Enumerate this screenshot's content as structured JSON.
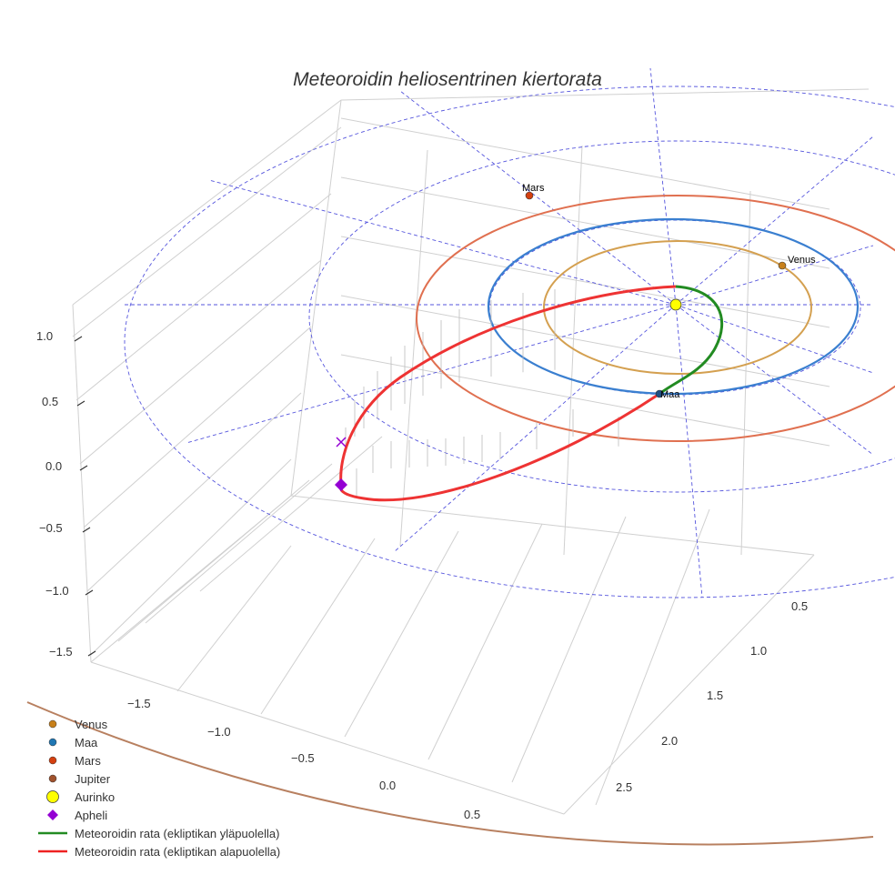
{
  "chart_data": {
    "type": "scatter3d",
    "title": "Meteoroidin heliosentrinen kiertorata",
    "x_ticks": [
      "−1.5",
      "−1.0",
      "−0.5",
      "0.0",
      "0.5"
    ],
    "y_ticks": [
      "0.5",
      "1.0",
      "1.5",
      "2.0",
      "2.5"
    ],
    "z_ticks": [
      "1.0",
      "0.5",
      "0.0",
      "−0.5",
      "−1.0",
      "−1.5"
    ],
    "planet_labels": {
      "venus": "Venus",
      "maa": "Maa",
      "mars": "Mars"
    },
    "legend": [
      {
        "name": "Venus",
        "symbol": "circle",
        "color": "#c8801a"
      },
      {
        "name": "Maa",
        "symbol": "circle",
        "color": "#1f77b4"
      },
      {
        "name": "Mars",
        "symbol": "circle",
        "color": "#d44010"
      },
      {
        "name": "Jupiter",
        "symbol": "circle",
        "color": "#a0522d"
      },
      {
        "name": "Aurinko",
        "symbol": "circle-big",
        "color": "#ffff00"
      },
      {
        "name": "Apheli",
        "symbol": "diamond",
        "color": "#9400d3"
      },
      {
        "name": "Meteoroidin rata (ekliptikan yläpuolella)",
        "symbol": "line",
        "color": "#228b22"
      },
      {
        "name": "Meteoroidin rata (ekliptikan alapuolella)",
        "symbol": "line",
        "color": "#ee2222"
      }
    ],
    "orbit_colors": {
      "venus": "#d4a050",
      "maa": "#3a7fd0",
      "mars": "#e07050",
      "jupiter": "#b88060",
      "grid": "#5555dd"
    }
  }
}
